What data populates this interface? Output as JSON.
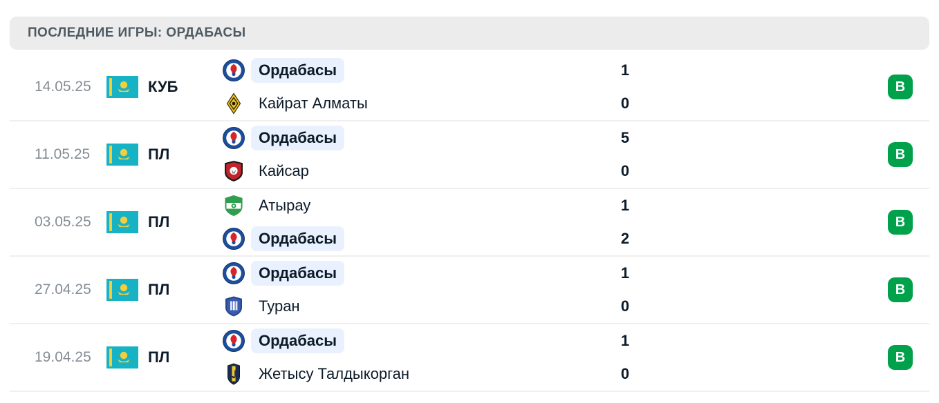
{
  "header": {
    "title": "ПОСЛЕДНИЕ ИГРЫ: ОРДАБАСЫ"
  },
  "colors": {
    "win_badge": "#00a14b",
    "highlight_pill": "#e8f1fd",
    "header_bg": "#ececec",
    "dark_text": "#0d1b29",
    "date_text": "#848c94",
    "flag_teal": "#17b3c5",
    "flag_yellow": "#f4ce3c"
  },
  "matches": [
    {
      "date": "14.05.25",
      "flag": "kazakhstan-flag",
      "competition": "КУБ",
      "home": {
        "name": "Ордабасы",
        "logo": "ordabasy-logo",
        "score": "1",
        "highlight": true
      },
      "away": {
        "name": "Кайрат Алматы",
        "logo": "kairat-logo",
        "score": "0",
        "highlight": false
      },
      "result": "В"
    },
    {
      "date": "11.05.25",
      "flag": "kazakhstan-flag",
      "competition": "ПЛ",
      "home": {
        "name": "Ордабасы",
        "logo": "ordabasy-logo",
        "score": "5",
        "highlight": true
      },
      "away": {
        "name": "Кайсар",
        "logo": "kaisar-logo",
        "score": "0",
        "highlight": false
      },
      "result": "В"
    },
    {
      "date": "03.05.25",
      "flag": "kazakhstan-flag",
      "competition": "ПЛ",
      "home": {
        "name": "Атырау",
        "logo": "atyrau-logo",
        "score": "1",
        "highlight": false
      },
      "away": {
        "name": "Ордабасы",
        "logo": "ordabasy-logo",
        "score": "2",
        "highlight": true
      },
      "result": "В"
    },
    {
      "date": "27.04.25",
      "flag": "kazakhstan-flag",
      "competition": "ПЛ",
      "home": {
        "name": "Ордабасы",
        "logo": "ordabasy-logo",
        "score": "1",
        "highlight": true
      },
      "away": {
        "name": "Туран",
        "logo": "turan-logo",
        "score": "0",
        "highlight": false
      },
      "result": "В"
    },
    {
      "date": "19.04.25",
      "flag": "kazakhstan-flag",
      "competition": "ПЛ",
      "home": {
        "name": "Ордабасы",
        "logo": "ordabasy-logo",
        "score": "1",
        "highlight": true
      },
      "away": {
        "name": "Жетысу Талдыкорган",
        "logo": "zhetysu-logo",
        "score": "0",
        "highlight": false
      },
      "result": "В"
    }
  ]
}
